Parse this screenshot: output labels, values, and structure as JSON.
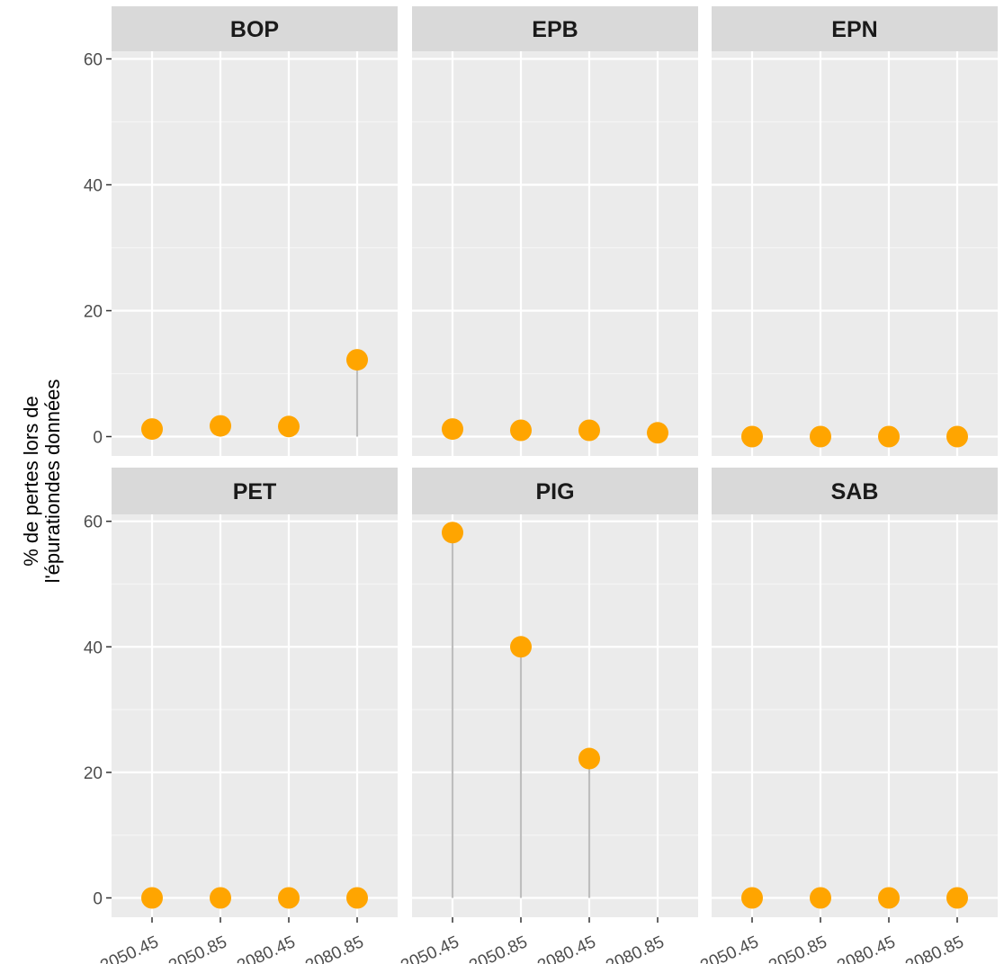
{
  "chart_data": {
    "type": "scatter",
    "style": "lollipop",
    "ylabel_lines": [
      "% de pertes lors de",
      "l'épurationdes données"
    ],
    "xlabel": "",
    "x_categories": [
      "2050.45",
      "2050.85",
      "2080.45",
      "2080.85"
    ],
    "ylim": [
      0,
      60
    ],
    "y_ticks": [
      0,
      20,
      40,
      60
    ],
    "grid": true,
    "point_color": "#FFA500",
    "stem_color": "#BEBEBE",
    "panel_background": "#EBEBEB",
    "strip_background": "#D9D9D9",
    "facets": [
      {
        "name": "BOP",
        "values": [
          1.2,
          1.7,
          1.6,
          12.2
        ]
      },
      {
        "name": "EPB",
        "values": [
          1.2,
          1.0,
          1.0,
          0.6
        ]
      },
      {
        "name": "EPN",
        "values": [
          0.0,
          0.0,
          0.0,
          0.0
        ]
      },
      {
        "name": "PET",
        "values": [
          0.0,
          0.0,
          0.0,
          0.0
        ]
      },
      {
        "name": "PIG",
        "values": [
          58.2,
          40.0,
          22.2,
          null
        ]
      },
      {
        "name": "SAB",
        "values": [
          0.0,
          0.0,
          0.0,
          0.0
        ]
      }
    ]
  }
}
